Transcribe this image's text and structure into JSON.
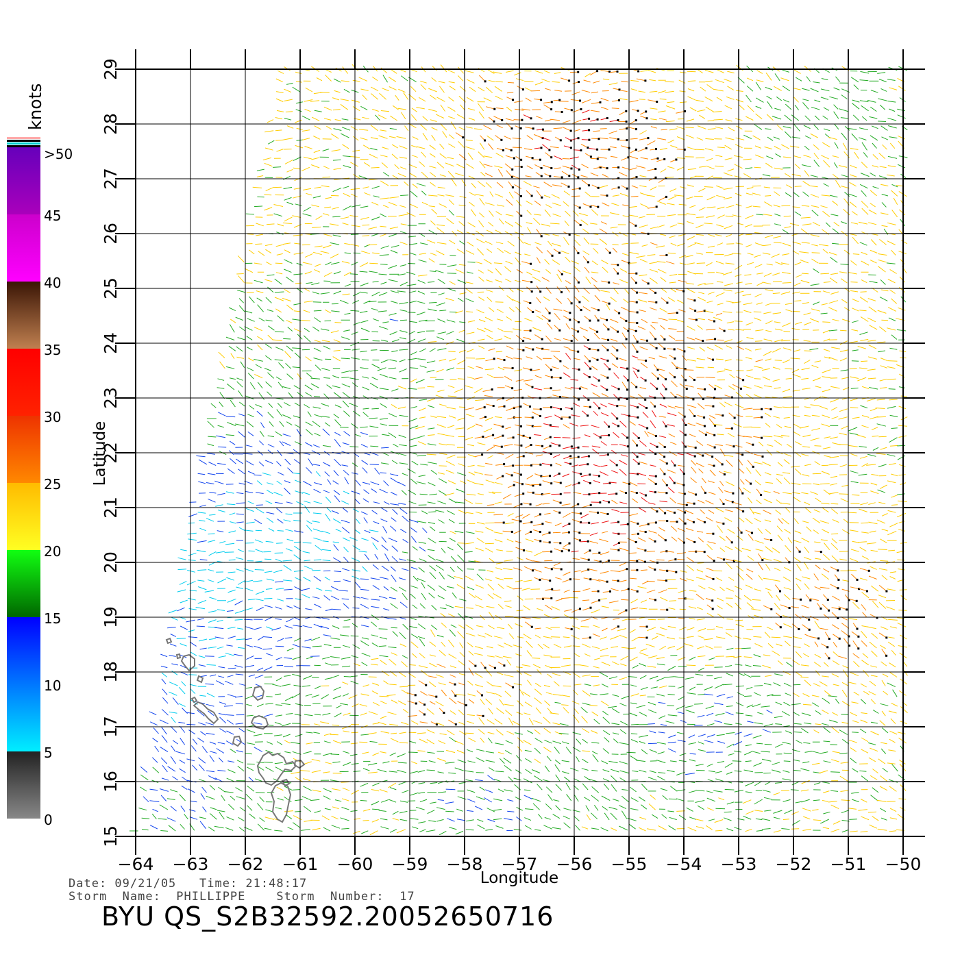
{
  "map": {
    "colorbar": {
      "unit": "knots",
      "tick_labels": [
        "0",
        "5",
        "10",
        "15",
        "20",
        "25",
        "30",
        "35",
        "40",
        "45",
        ">50"
      ],
      "bands": [
        {
          "from": 0,
          "to": 5,
          "stops": [
            "#888888",
            "#222222"
          ]
        },
        {
          "from": 5,
          "to": 10,
          "stops": [
            "#00eeff",
            "#0077ff"
          ]
        },
        {
          "from": 10,
          "to": 15,
          "stops": [
            "#0077ff",
            "#0000ff"
          ]
        },
        {
          "from": 15,
          "to": 20,
          "stops": [
            "#006600",
            "#11ff11"
          ]
        },
        {
          "from": 20,
          "to": 25,
          "stops": [
            "#ffff22",
            "#ffbb00"
          ]
        },
        {
          "from": 25,
          "to": 30,
          "stops": [
            "#ff8800",
            "#ee3300"
          ]
        },
        {
          "from": 30,
          "to": 35,
          "stops": [
            "#ff2200",
            "#ff0000"
          ]
        },
        {
          "from": 35,
          "to": 40,
          "stops": [
            "#c08050",
            "#3a1505"
          ]
        },
        {
          "from": 40,
          "to": 45,
          "stops": [
            "#ff00ff",
            "#cc00cc"
          ]
        },
        {
          "from": 45,
          "to": 50,
          "stops": [
            "#aa00bb",
            "#6600bb"
          ]
        }
      ],
      "cap_colors": [
        "#ffaaaa",
        "#000000",
        "#00cccc",
        "#000000"
      ]
    },
    "axes": {
      "xlabel": "Longitude",
      "ylabel": "Latitude",
      "lon_range": [
        -64,
        -50
      ],
      "lat_range": [
        15,
        29
      ],
      "lon_ticks": [
        "−64",
        "−63",
        "−62",
        "−61",
        "−60",
        "−59",
        "−58",
        "−57",
        "−56",
        "−55",
        "−54",
        "−53",
        "−52",
        "−51",
        "−50"
      ],
      "lat_ticks": [
        "15",
        "16",
        "17",
        "18",
        "19",
        "20",
        "21",
        "22",
        "23",
        "24",
        "25",
        "26",
        "27",
        "28",
        "29"
      ],
      "grid": true
    },
    "wind_colors": {
      "calm": "#222222",
      "low": "#00ccee",
      "mid": "#1144ee",
      "moderate": "#22aa22",
      "fresh": "#ffcc00",
      "strong": "#ff8800",
      "gale": "#ee1111",
      "storm": "#5a1a0a",
      "extreme": "#aa00cc"
    },
    "land_color": "#777777",
    "footer": {
      "date_line": "Date: 09/21/05   Time: 21:48:17",
      "storm_line": "Storm  Name:  PHILLIPPE    Storm  Number:  17",
      "product_id": "BYU  QS_S2B32592.20052650716"
    }
  }
}
